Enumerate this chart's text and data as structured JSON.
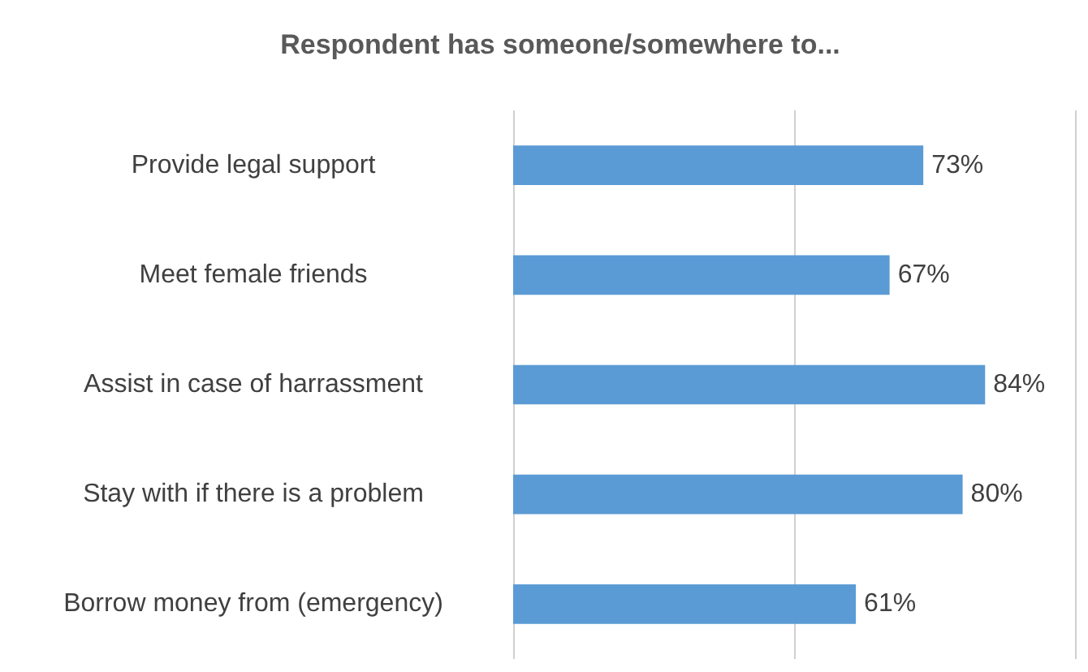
{
  "chart_data": {
    "type": "bar",
    "orientation": "horizontal",
    "title": "Respondent has someone/somewhere to...",
    "categories": [
      "Provide legal support",
      "Meet female friends",
      "Assist in case of harrassment",
      "Stay with if there is a problem",
      "Borrow money from (emergency)"
    ],
    "values": [
      73,
      67,
      84,
      80,
      61
    ],
    "value_labels": [
      "73%",
      "67%",
      "84%",
      "80%",
      "61%"
    ],
    "color": "#5b9bd5",
    "xlim": [
      0,
      100
    ],
    "xticks": [
      {
        "value": 0,
        "label": null
      },
      {
        "value": 50,
        "label": null
      },
      {
        "value": 100,
        "label": null
      }
    ],
    "grid": "x",
    "tick_labels": "y"
  }
}
